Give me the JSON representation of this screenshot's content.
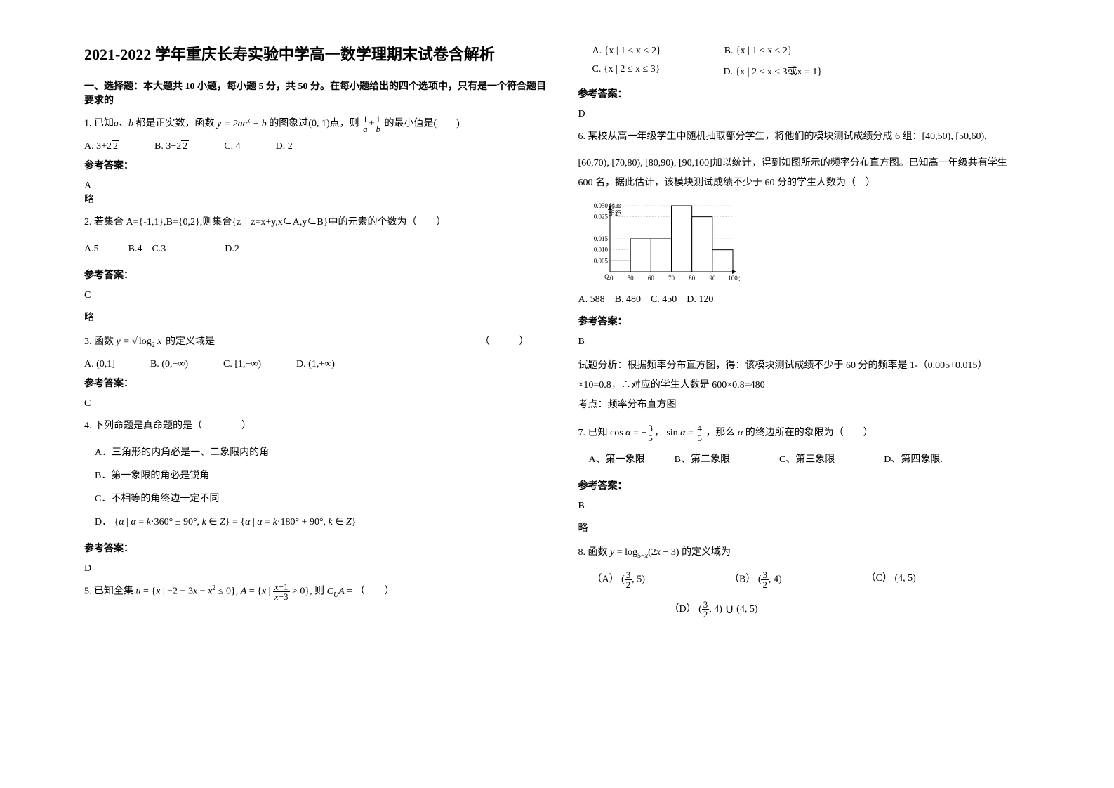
{
  "title": "2021-2022 学年重庆长寿实验中学高一数学理期末试卷含解析",
  "section1_header": "一、选择题：本大题共 10 小题，每小题 5 分，共 50 分。在每小题给出的四个选项中，只有是一个符合题目要求的",
  "q1": {
    "text_pre": "1. 已知",
    "text_mid": "都是正实数，函数",
    "text_post": "的图象过(0, 1)点，则",
    "text_end": "的最小值是(　　)",
    "optA_label": "A.",
    "optA": "3+2√2",
    "optB_label": "B.",
    "optB": "3−2√2",
    "optC_label": "C.",
    "optC": "4",
    "optD_label": "D.",
    "optD": "2",
    "answer_label": "参考答案：",
    "answer": "A",
    "note": "略"
  },
  "q2": {
    "text": "2. 若集合 A={-1,1},B={0,2},则集合{z｜z=x+y,x∈A,y∈B}中的元素的个数为（　　）",
    "opts": "A.5　　　B.4　C.3　　　　　　D.2",
    "answer_label": "参考答案：",
    "answer": "C",
    "note": "略"
  },
  "q3": {
    "text_pre": "3. 函数",
    "text_post": "的定义域是",
    "paren": "（　　　）",
    "optA_label": "A.",
    "optA": "(0,1]",
    "optB_label": "B.",
    "optB": "(0,+∞)",
    "optC_label": "C.",
    "optC": "[1,+∞)",
    "optD_label": "D.",
    "optD": "(1,+∞)",
    "answer_label": "参考答案：",
    "answer": "C"
  },
  "q4": {
    "text": "4. 下列命题是真命题的是（　　　　）",
    "optA": "A．三角形的内角必是一、二象限内的角",
    "optB": "B．第一象限的角必是锐角",
    "optC": "C．不相等的角终边一定不同",
    "optD_label": "D．",
    "answer_label": "参考答案：",
    "answer": "D"
  },
  "q5": {
    "text_pre": "5. 已知全集",
    "text_mid": "则",
    "text_end": "（　　）"
  },
  "q5opts": {
    "A_label": "A.",
    "A": "{x | 1 < x < 2}",
    "B_label": "B.",
    "B": "{x | 1 ≤ x ≤ 2}",
    "C_label": "C.",
    "C": "{x | 2 ≤ x ≤ 3}",
    "D_label": "D.",
    "D": "{x | 2 ≤ x ≤ 3或x = 1}",
    "answer_label": "参考答案：",
    "answer": "D"
  },
  "q6": {
    "text1": "6. 某校从高一年级学生中随机抽取部分学生，将他们的模块测试成绩分成 6 组：[40,50), [50,60),",
    "text2": "[60,70), [70,80), [80,90), [90,100]加以统计，得到如图所示的频率分布直方图。已知高一年级共有学生",
    "text3": "600 名，据此估计，该模块测试成绩不少于 60 分的学生人数为（　）",
    "opts": "A. 588　B. 480　C. 450　D. 120",
    "answer_label": "参考答案：",
    "answer": "B",
    "analysis1": "试题分析：根据频率分布直方图，得：该模块测试成绩不少于 60 分的频率是 1-（0.005+0.015）",
    "analysis2": "×10=0.8，∴对应的学生人数是 600×0.8=480",
    "analysis3": "考点：频率分布直方图"
  },
  "histogram": {
    "ylabel_top": "频率",
    "ylabel_bot": "组距",
    "xlabel": "分数",
    "yticks": [
      "0.030",
      "0.025",
      "0.015",
      "0.010",
      "0.005"
    ],
    "xticks": [
      "40",
      "50",
      "60",
      "70",
      "80",
      "90",
      "100"
    ],
    "bars": [
      0.005,
      0.015,
      0.015,
      0.03,
      0.025,
      0.01
    ],
    "bar_color": "#ffffff",
    "border_color": "#000000",
    "grid_color": "#aaaaaa",
    "bg": "#ffffff",
    "font_size": 9
  },
  "q7": {
    "text_pre": "7. 已知",
    "text_mid": "，那么",
    "text_end": "的终边所在的象限为（　　）",
    "opts": "A、第一象限　　　B、第二象限　　　　　C、第三象限　　　　　D、第四象限.",
    "answer_label": "参考答案：",
    "answer": "B",
    "note": "略"
  },
  "q8": {
    "text_pre": "8. 函数",
    "text_post": "的定义域为",
    "A_label": "（A）",
    "B_label": "（B）",
    "C_label": "（C）",
    "C_val": "(4, 5)",
    "D_label": "（D）"
  },
  "colors": {
    "text": "#000000",
    "bg": "#ffffff"
  }
}
